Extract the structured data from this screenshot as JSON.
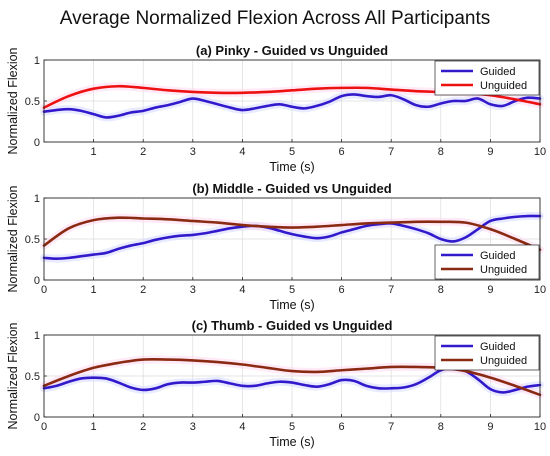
{
  "figure_title": "Average Normalized Flexion Across All Participants",
  "chart_data": [
    {
      "type": "line",
      "title": "(a) Pinky - Guided vs Unguided",
      "xlabel": "Time (s)",
      "ylabel": "Normalized Flexion",
      "xlim": [
        0,
        10
      ],
      "ylim": [
        0,
        1
      ],
      "xticks": [
        "1",
        "2",
        "3",
        "4",
        "5",
        "6",
        "7",
        "8",
        "9",
        "10"
      ],
      "yticks": [
        "0",
        "0.5",
        "1"
      ],
      "grid": true,
      "legend": "top-right",
      "series": [
        {
          "name": "Guided",
          "color": "#3319cc",
          "x": [
            0,
            0.25,
            0.5,
            0.75,
            1,
            1.25,
            1.5,
            1.75,
            2,
            2.25,
            2.5,
            2.75,
            3,
            3.25,
            3.5,
            3.75,
            4,
            4.25,
            4.5,
            4.75,
            5,
            5.25,
            5.5,
            5.75,
            6,
            6.25,
            6.5,
            6.75,
            7,
            7.25,
            7.5,
            7.75,
            8,
            8.25,
            8.5,
            8.75,
            9,
            9.25,
            9.5,
            9.75,
            10
          ],
          "y": [
            0.37,
            0.39,
            0.4,
            0.38,
            0.34,
            0.3,
            0.32,
            0.36,
            0.38,
            0.42,
            0.45,
            0.49,
            0.53,
            0.5,
            0.46,
            0.42,
            0.39,
            0.41,
            0.44,
            0.46,
            0.43,
            0.41,
            0.44,
            0.49,
            0.56,
            0.58,
            0.56,
            0.55,
            0.57,
            0.52,
            0.45,
            0.43,
            0.47,
            0.5,
            0.5,
            0.53,
            0.46,
            0.44,
            0.5,
            0.54,
            0.53
          ]
        },
        {
          "name": "Unguided",
          "color": "#ee1111",
          "x": [
            0,
            0.5,
            1,
            1.5,
            2,
            2.5,
            3,
            3.5,
            4,
            4.5,
            5,
            5.5,
            6,
            6.5,
            7,
            7.5,
            8,
            8.5,
            9,
            9.5,
            10
          ],
          "y": [
            0.42,
            0.56,
            0.65,
            0.68,
            0.66,
            0.63,
            0.61,
            0.6,
            0.6,
            0.61,
            0.63,
            0.65,
            0.66,
            0.66,
            0.64,
            0.62,
            0.61,
            0.6,
            0.57,
            0.52,
            0.46
          ]
        }
      ]
    },
    {
      "type": "line",
      "title": "(b) Middle - Guided vs Unguided",
      "xlabel": "Time (s)",
      "ylabel": "Normalized Flexion",
      "xlim": [
        0,
        10
      ],
      "ylim": [
        0,
        1
      ],
      "xticks": [
        "0",
        "1",
        "2",
        "3",
        "4",
        "5",
        "6",
        "7",
        "8",
        "9",
        "10"
      ],
      "yticks": [
        "0",
        "0.5",
        "1"
      ],
      "grid": true,
      "legend": "bottom-right",
      "series": [
        {
          "name": "Guided",
          "color": "#3319cc",
          "x": [
            0,
            0.25,
            0.5,
            0.75,
            1,
            1.25,
            1.5,
            1.75,
            2,
            2.25,
            2.5,
            2.75,
            3,
            3.25,
            3.5,
            3.75,
            4,
            4.25,
            4.5,
            4.75,
            5,
            5.25,
            5.5,
            5.75,
            6,
            6.25,
            6.5,
            6.75,
            7,
            7.25,
            7.5,
            7.75,
            8,
            8.25,
            8.5,
            8.75,
            9,
            9.25,
            9.5,
            9.75,
            10
          ],
          "y": [
            0.27,
            0.26,
            0.27,
            0.29,
            0.31,
            0.33,
            0.38,
            0.42,
            0.45,
            0.49,
            0.52,
            0.54,
            0.55,
            0.57,
            0.6,
            0.63,
            0.65,
            0.66,
            0.64,
            0.6,
            0.56,
            0.53,
            0.51,
            0.53,
            0.58,
            0.62,
            0.66,
            0.68,
            0.69,
            0.66,
            0.62,
            0.57,
            0.5,
            0.47,
            0.52,
            0.62,
            0.72,
            0.75,
            0.77,
            0.78,
            0.78
          ]
        },
        {
          "name": "Unguided",
          "color": "#8b2a12",
          "x": [
            0,
            0.5,
            1,
            1.5,
            2,
            2.5,
            3,
            3.5,
            4,
            4.5,
            5,
            5.5,
            6,
            6.5,
            7,
            7.5,
            8,
            8.5,
            9,
            9.5,
            10
          ],
          "y": [
            0.42,
            0.63,
            0.73,
            0.76,
            0.75,
            0.74,
            0.72,
            0.7,
            0.67,
            0.65,
            0.64,
            0.65,
            0.67,
            0.69,
            0.7,
            0.71,
            0.71,
            0.7,
            0.62,
            0.5,
            0.37
          ]
        }
      ]
    },
    {
      "type": "line",
      "title": "(c) Thumb - Guided vs Unguided",
      "xlabel": "Time (s)",
      "ylabel": "Normalized Flexion",
      "xlim": [
        0,
        10
      ],
      "ylim": [
        0,
        1
      ],
      "xticks": [
        "0",
        "1",
        "2",
        "3",
        "4",
        "5",
        "6",
        "7",
        "8",
        "9",
        "10"
      ],
      "yticks": [
        "0",
        "0.5",
        "1"
      ],
      "grid": true,
      "legend": "top-right",
      "series": [
        {
          "name": "Guided",
          "color": "#3319cc",
          "x": [
            0,
            0.25,
            0.5,
            0.75,
            1,
            1.25,
            1.5,
            1.75,
            2,
            2.25,
            2.5,
            2.75,
            3,
            3.25,
            3.5,
            3.75,
            4,
            4.25,
            4.5,
            4.75,
            5,
            5.25,
            5.5,
            5.75,
            6,
            6.25,
            6.5,
            6.75,
            7,
            7.25,
            7.5,
            7.75,
            8,
            8.25,
            8.5,
            8.75,
            9,
            9.25,
            9.5,
            9.75,
            10
          ],
          "y": [
            0.35,
            0.38,
            0.43,
            0.47,
            0.48,
            0.47,
            0.42,
            0.36,
            0.33,
            0.35,
            0.4,
            0.42,
            0.42,
            0.43,
            0.44,
            0.41,
            0.38,
            0.38,
            0.41,
            0.43,
            0.42,
            0.39,
            0.37,
            0.4,
            0.45,
            0.44,
            0.38,
            0.35,
            0.35,
            0.36,
            0.4,
            0.48,
            0.57,
            0.6,
            0.56,
            0.46,
            0.34,
            0.3,
            0.33,
            0.37,
            0.39
          ]
        },
        {
          "name": "Unguided",
          "color": "#8b2a12",
          "x": [
            0,
            0.5,
            1,
            1.5,
            2,
            2.5,
            3,
            3.5,
            4,
            4.5,
            5,
            5.5,
            6,
            6.5,
            7,
            7.5,
            8,
            8.5,
            9,
            9.5,
            10
          ],
          "y": [
            0.38,
            0.5,
            0.6,
            0.66,
            0.7,
            0.7,
            0.69,
            0.67,
            0.64,
            0.6,
            0.56,
            0.55,
            0.57,
            0.59,
            0.61,
            0.61,
            0.6,
            0.56,
            0.48,
            0.38,
            0.27
          ]
        }
      ]
    }
  ]
}
